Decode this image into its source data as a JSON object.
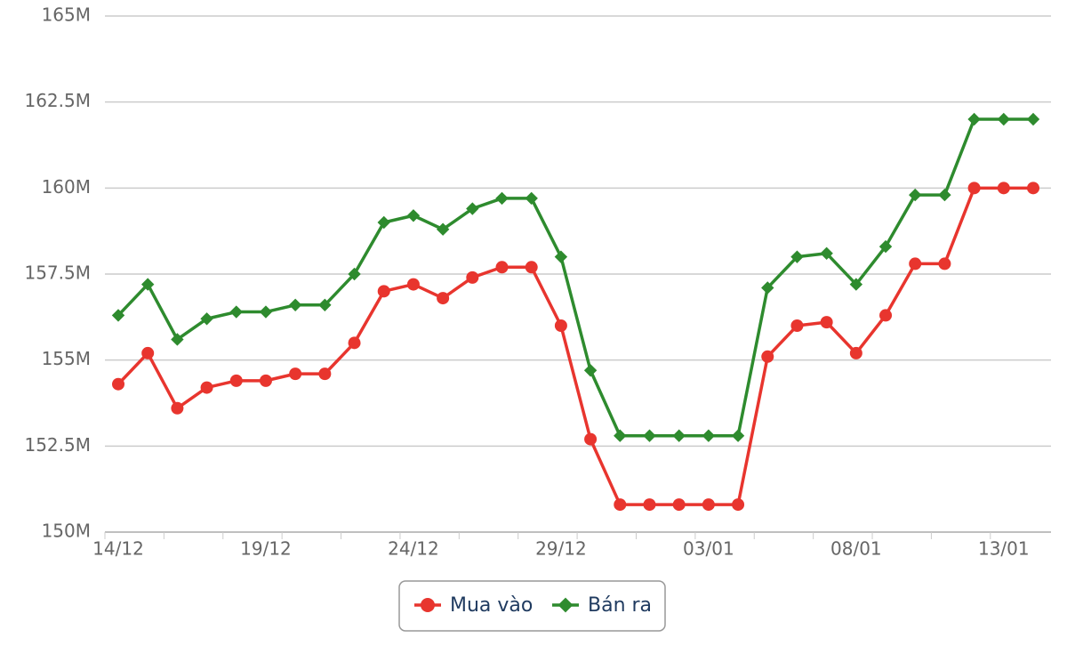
{
  "chart_data": {
    "type": "line",
    "categories": [
      "14/12",
      null,
      null,
      null,
      null,
      "19/12",
      null,
      null,
      null,
      null,
      "24/12",
      null,
      null,
      null,
      null,
      "29/12",
      null,
      null,
      null,
      null,
      "03/01",
      null,
      null,
      null,
      null,
      "08/01",
      null,
      null,
      null,
      null,
      "13/01",
      null
    ],
    "series": [
      {
        "name": "Mua vào",
        "color": "#e8352e",
        "marker": "circle",
        "values": [
          154.3,
          155.2,
          153.6,
          154.2,
          154.4,
          154.4,
          154.6,
          154.6,
          155.5,
          157.0,
          157.2,
          156.8,
          157.4,
          157.7,
          157.7,
          156.0,
          152.7,
          150.8,
          150.8,
          150.8,
          150.8,
          150.8,
          155.1,
          156.0,
          156.1,
          155.2,
          156.3,
          157.8,
          157.8,
          160,
          160,
          160
        ]
      },
      {
        "name": "Bán ra",
        "color": "#2e8b2e",
        "marker": "diamond",
        "values": [
          156.3,
          157.2,
          155.6,
          156.2,
          156.4,
          156.4,
          156.6,
          156.6,
          157.5,
          159.0,
          159.2,
          158.8,
          159.4,
          159.7,
          159.7,
          158.0,
          154.7,
          152.8,
          152.8,
          152.8,
          152.8,
          152.8,
          157.1,
          158.0,
          158.1,
          157.2,
          158.3,
          159.8,
          159.8,
          162,
          162,
          162
        ]
      }
    ],
    "ylim": [
      150,
      165
    ],
    "yticks": [
      {
        "value": 150,
        "label": "150M"
      },
      {
        "value": 152.5,
        "label": "152.5M"
      },
      {
        "value": 155,
        "label": "155M"
      },
      {
        "value": 157.5,
        "label": "157.5M"
      },
      {
        "value": 160,
        "label": "160M"
      },
      {
        "value": 162.5,
        "label": "162.5M"
      },
      {
        "value": 165,
        "label": "165M"
      }
    ],
    "grid": true,
    "legend": "bottom"
  }
}
